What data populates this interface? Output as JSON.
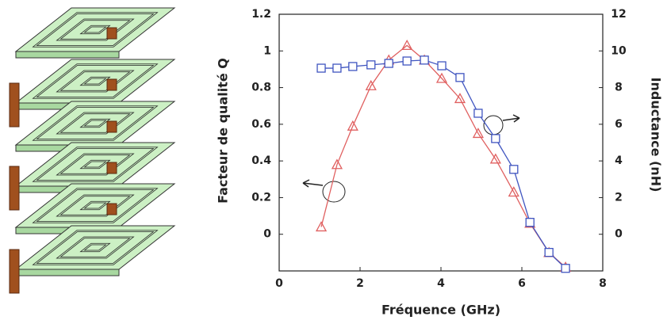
{
  "chart_data": {
    "type": "line",
    "x": [
      1.04,
      1.43,
      1.82,
      2.27,
      2.71,
      3.16,
      3.59,
      4.02,
      4.47,
      4.92,
      5.35,
      5.8,
      6.2,
      6.67,
      7.08
    ],
    "series": [
      {
        "name": "Facteur de qualité Q",
        "color": "#e06060",
        "marker": "triangle",
        "axis": "y",
        "values": [
          0.04,
          0.38,
          0.59,
          0.81,
          0.95,
          1.03,
          0.95,
          0.85,
          0.74,
          0.55,
          0.41,
          0.23,
          0.06,
          -0.1,
          -0.18
        ]
      },
      {
        "name": "Inductance (nH)",
        "color": "#4055c0",
        "marker": "square",
        "axis": "y2",
        "values": [
          9.06,
          9.06,
          9.15,
          9.24,
          9.32,
          9.45,
          9.5,
          9.19,
          8.55,
          6.6,
          5.22,
          3.54,
          0.65,
          -0.99,
          -1.86
        ]
      }
    ],
    "x_label": "Fréquence (GHz)",
    "y_label": "Facteur de qualité Q",
    "y2_label": "Inductance  (nH)",
    "xlim": [
      0,
      8
    ],
    "xticks": [
      0,
      2,
      4,
      6,
      8
    ],
    "ylim": [
      -0.2,
      1.2
    ],
    "yticks": [
      0,
      0.2,
      0.4,
      0.6,
      0.8,
      1,
      1.2
    ],
    "y2lim": [
      -2,
      12
    ],
    "y2ticks": [
      0,
      2,
      4,
      6,
      8,
      10,
      12
    ],
    "grid": false
  }
}
